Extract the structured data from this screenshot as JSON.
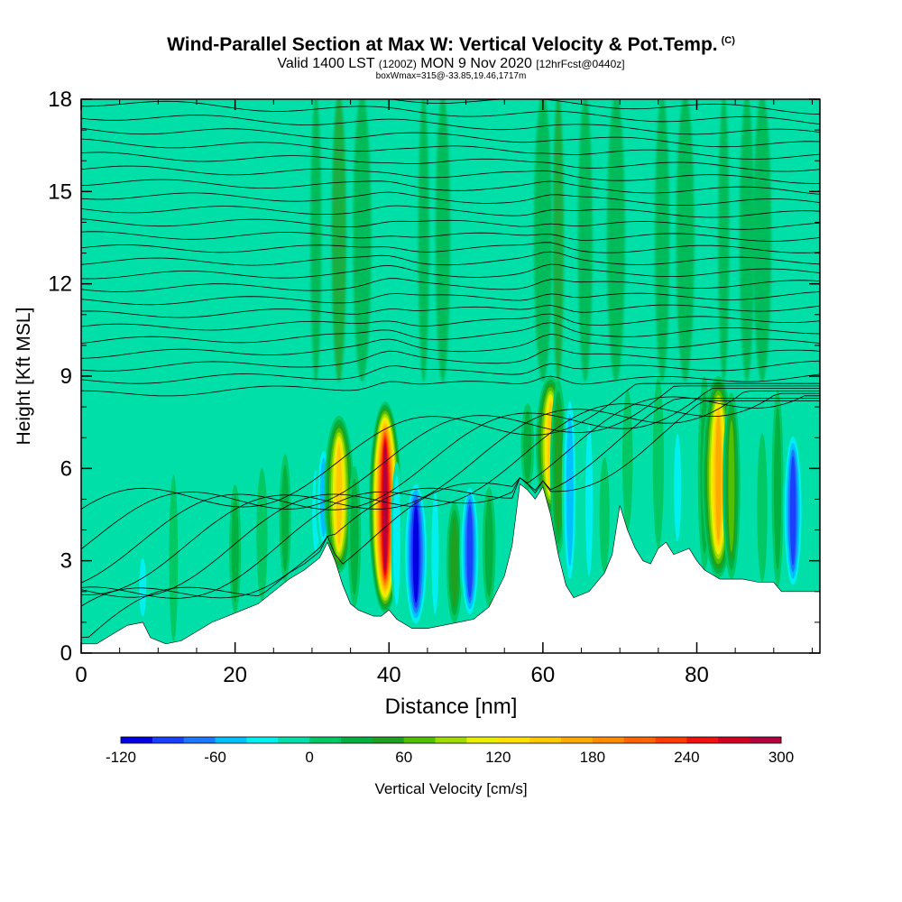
{
  "header": {
    "title": "Wind-Parallel Section at Max W: Vertical Velocity & Pot.Temp.",
    "copyright": "(C)",
    "valid_prefix": "Valid 1400 LST",
    "valid_utc": "(1200Z)",
    "valid_date": "MON 9 Nov 2020",
    "forecast": "[12hrFcst@0440z]",
    "box_info": "boxWmax=315@-33.85,19.46,1717m"
  },
  "chart_data": {
    "type": "heatmap",
    "xlabel": "Distance [nm]",
    "ylabel": "Height [Kft MSL]",
    "xlim": [
      0,
      96
    ],
    "ylim": [
      0,
      18
    ],
    "x_ticks": [
      "0",
      "20",
      "40",
      "60",
      "80"
    ],
    "y_ticks": [
      "0",
      "3",
      "6",
      "9",
      "12",
      "15",
      "18"
    ],
    "colorbar": {
      "label": "Vertical Velocity [cm/s]",
      "range": [
        -120,
        300
      ],
      "tick_labels": [
        "-120",
        "-60",
        "0",
        "60",
        "120",
        "180",
        "240",
        "300"
      ],
      "colors": [
        "#0000e0",
        "#1a40ff",
        "#1e78ff",
        "#00bfff",
        "#00f0f0",
        "#00dfa8",
        "#00c864",
        "#00b040",
        "#20a020",
        "#50c000",
        "#a0dc00",
        "#e8f000",
        "#ffe000",
        "#ffc800",
        "#ffaa00",
        "#ff8c00",
        "#ff6400",
        "#ff3c00",
        "#f01010",
        "#d00020",
        "#b00040"
      ]
    },
    "terrain_kft": [
      [
        0,
        0.3
      ],
      [
        2,
        0.3
      ],
      [
        4,
        0.6
      ],
      [
        6,
        0.9
      ],
      [
        8,
        1.0
      ],
      [
        9,
        0.5
      ],
      [
        11,
        0.3
      ],
      [
        13,
        0.4
      ],
      [
        15,
        0.7
      ],
      [
        17,
        1.0
      ],
      [
        19,
        1.2
      ],
      [
        21,
        1.4
      ],
      [
        23,
        1.6
      ],
      [
        25,
        2.0
      ],
      [
        27,
        2.4
      ],
      [
        29,
        2.7
      ],
      [
        31,
        3.1
      ],
      [
        32,
        3.6
      ],
      [
        33,
        3.0
      ],
      [
        34,
        2.2
      ],
      [
        35,
        1.6
      ],
      [
        36,
        1.4
      ],
      [
        37,
        1.3
      ],
      [
        38,
        1.2
      ],
      [
        39,
        1.2
      ],
      [
        40,
        1.4
      ],
      [
        41,
        1.1
      ],
      [
        43,
        0.8
      ],
      [
        45,
        0.8
      ],
      [
        47,
        0.9
      ],
      [
        49,
        1.0
      ],
      [
        51,
        1.1
      ],
      [
        53,
        1.5
      ],
      [
        55,
        2.5
      ],
      [
        56,
        3.5
      ],
      [
        57,
        5.5
      ],
      [
        58,
        5.3
      ],
      [
        59,
        5.0
      ],
      [
        60,
        5.4
      ],
      [
        61,
        4.5
      ],
      [
        62,
        3.2
      ],
      [
        63,
        2.2
      ],
      [
        64,
        1.8
      ],
      [
        66,
        2.0
      ],
      [
        68,
        2.6
      ],
      [
        69,
        3.2
      ],
      [
        70,
        4.8
      ],
      [
        71,
        4.0
      ],
      [
        72,
        3.4
      ],
      [
        73,
        3.0
      ],
      [
        74,
        2.9
      ],
      [
        75,
        3.4
      ],
      [
        76,
        3.6
      ],
      [
        77,
        3.2
      ],
      [
        79,
        3.4
      ],
      [
        80,
        3.0
      ],
      [
        81,
        2.7
      ],
      [
        83,
        2.4
      ],
      [
        86,
        2.4
      ],
      [
        88,
        2.3
      ],
      [
        90,
        2.3
      ],
      [
        91,
        2.0
      ],
      [
        96,
        2.0
      ]
    ],
    "w_cells_cms": [
      {
        "x": 4.5,
        "z": 1.8,
        "w": -20
      },
      {
        "x": 8.0,
        "z": 1.8,
        "w": -30
      },
      {
        "x": 10.0,
        "z": 2.5,
        "w": -25
      },
      {
        "x": 12.0,
        "z": 3.5,
        "w": 10
      },
      {
        "x": 16.0,
        "z": 4.0,
        "w": -15
      },
      {
        "x": 20.0,
        "z": 3.5,
        "w": 30
      },
      {
        "x": 23.5,
        "z": 4.0,
        "w": 25
      },
      {
        "x": 26.5,
        "z": 4.5,
        "w": 30
      },
      {
        "x": 30.5,
        "z": 4.5,
        "w": -30
      },
      {
        "x": 31.5,
        "z": 5.0,
        "w": -60
      },
      {
        "x": 33.5,
        "z": 5.5,
        "w": 150
      },
      {
        "x": 35.5,
        "z": 4.0,
        "w": 40
      },
      {
        "x": 37.5,
        "z": 4.5,
        "w": -25
      },
      {
        "x": 39.5,
        "z": 5.5,
        "w": 300
      },
      {
        "x": 41.0,
        "z": 4.0,
        "w": -30
      },
      {
        "x": 43.5,
        "z": 3.5,
        "w": -120
      },
      {
        "x": 46.0,
        "z": 3.5,
        "w": -30
      },
      {
        "x": 48.5,
        "z": 3.0,
        "w": 60
      },
      {
        "x": 50.5,
        "z": 3.5,
        "w": -90
      },
      {
        "x": 53.0,
        "z": 3.5,
        "w": 40
      },
      {
        "x": 55.0,
        "z": 4.0,
        "w": -20
      },
      {
        "x": 58.0,
        "z": 6.5,
        "w": 40
      },
      {
        "x": 61.0,
        "z": 7.0,
        "w": 150
      },
      {
        "x": 62.0,
        "z": 6.5,
        "w": 60
      },
      {
        "x": 63.5,
        "z": 6.0,
        "w": -60
      },
      {
        "x": 66.0,
        "z": 5.5,
        "w": -30
      },
      {
        "x": 68.0,
        "z": 4.5,
        "w": 20
      },
      {
        "x": 71.0,
        "z": 6.5,
        "w": 20
      },
      {
        "x": 72.5,
        "z": 4.5,
        "w": -20
      },
      {
        "x": 75.0,
        "z": 7.0,
        "w": 25
      },
      {
        "x": 77.5,
        "z": 5.5,
        "w": -30
      },
      {
        "x": 81.0,
        "z": 6.5,
        "w": 40
      },
      {
        "x": 82.8,
        "z": 6.5,
        "w": 180
      },
      {
        "x": 84.5,
        "z": 6.0,
        "w": 70
      },
      {
        "x": 86.5,
        "z": 5.5,
        "w": -25
      },
      {
        "x": 88.5,
        "z": 5.0,
        "w": 20
      },
      {
        "x": 90.5,
        "z": 6.0,
        "w": 30
      },
      {
        "x": 92.5,
        "z": 5.0,
        "w": -90
      }
    ],
    "upper_streaks": [
      {
        "x": 30.5,
        "w": 30
      },
      {
        "x": 33.5,
        "w": 40
      },
      {
        "x": 36.5,
        "w": 20
      },
      {
        "x": 44.5,
        "w": 30
      },
      {
        "x": 47.0,
        "w": 20
      },
      {
        "x": 60.0,
        "w": 30
      },
      {
        "x": 62.0,
        "w": 40
      },
      {
        "x": 65.5,
        "w": 20
      },
      {
        "x": 69.5,
        "w": 30
      },
      {
        "x": 72.5,
        "w": -20
      },
      {
        "x": 75.5,
        "w": 30
      },
      {
        "x": 78.5,
        "w": 25
      },
      {
        "x": 83.5,
        "w": 30
      },
      {
        "x": 86.5,
        "w": 20
      },
      {
        "x": 88.5,
        "w": 25
      }
    ],
    "theta_contour_count": 32
  }
}
